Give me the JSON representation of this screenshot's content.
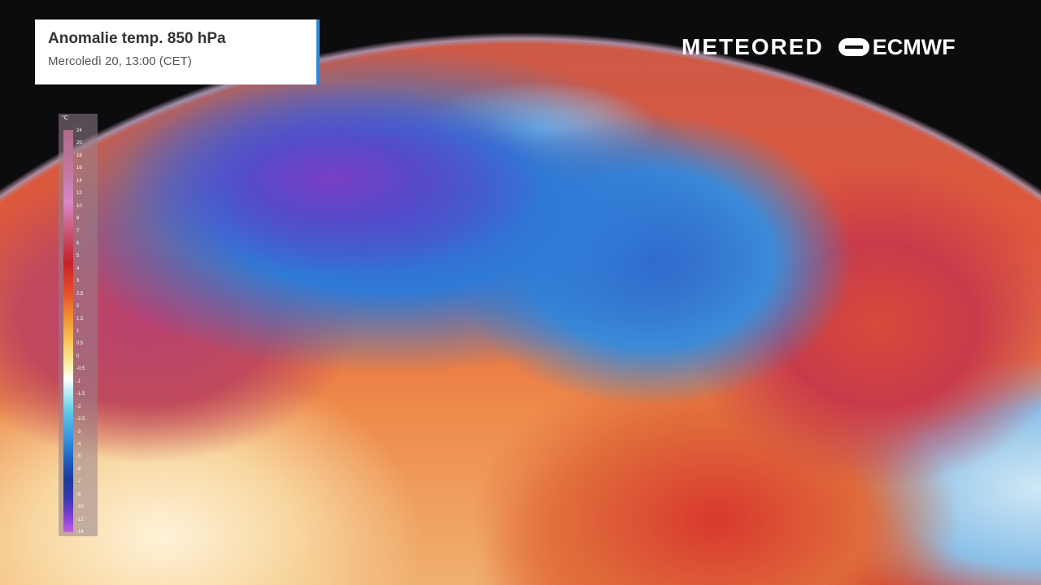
{
  "header": {
    "title": "Anomalie temp. 850 hPa",
    "subtitle": "Mercoledì 20, 13:00 (CET)"
  },
  "logos": {
    "meteored": "METEORED",
    "ecmwf": "ECMWF"
  },
  "legend": {
    "unit": "°C",
    "ticks": [
      "24",
      "20",
      "18",
      "16",
      "14",
      "12",
      "10",
      "8",
      "7",
      "6",
      "5",
      "4",
      "3",
      "2.5",
      "2",
      "1.5",
      "1",
      "0.5",
      "0",
      "-0.5",
      "-1",
      "-1.5",
      "-2",
      "-2.5",
      "-3",
      "-4",
      "-5",
      "-6",
      "-7",
      "-8",
      "-10",
      "-12",
      "-14"
    ],
    "colors": {
      "warm": "#c8202a",
      "neutral": "#ffffff",
      "cold": "#1e60c0",
      "extreme_cold": "#c060e0"
    }
  }
}
